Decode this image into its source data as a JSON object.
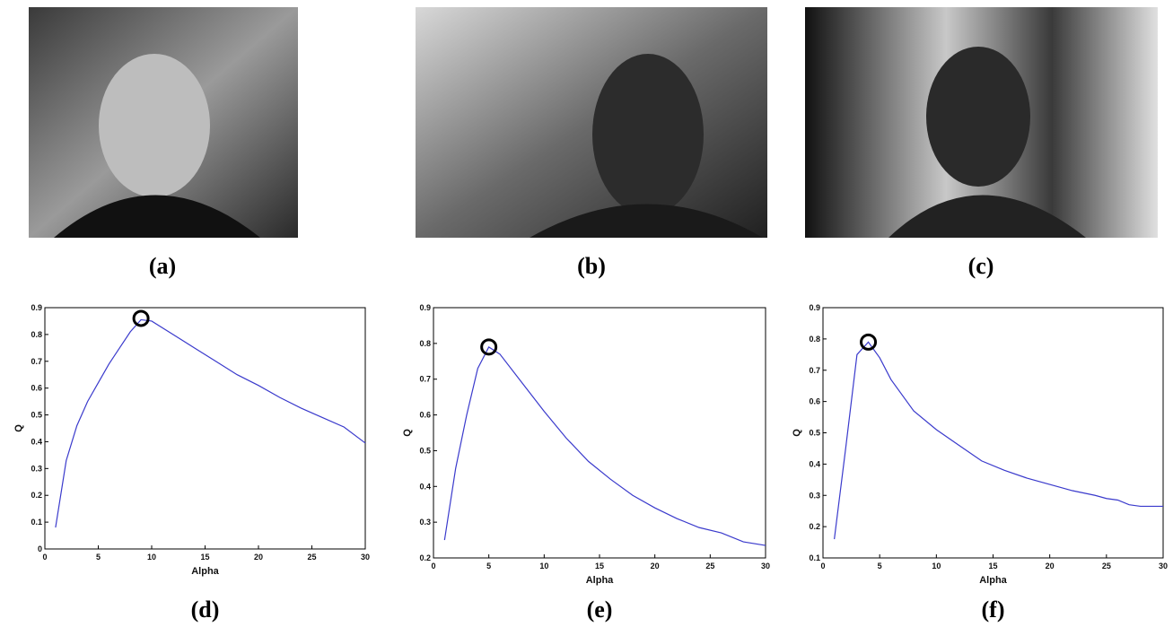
{
  "images": [
    {
      "caption": "(a)"
    },
    {
      "caption": "(b)"
    },
    {
      "caption": "(c)"
    }
  ],
  "chart_data": [
    {
      "type": "line",
      "caption": "(d)",
      "x_label": "Alpha",
      "y_label": "Q",
      "x": [
        1,
        2,
        3,
        4,
        5,
        6,
        7,
        8,
        9,
        10,
        12,
        14,
        16,
        18,
        20,
        22,
        24,
        26,
        28,
        30
      ],
      "series": [
        {
          "color": "#3a3acc",
          "values": [
            0.08,
            0.33,
            0.46,
            0.55,
            0.62,
            0.69,
            0.75,
            0.81,
            0.855,
            0.85,
            0.8,
            0.75,
            0.7,
            0.65,
            0.61,
            0.565,
            0.525,
            0.49,
            0.455,
            0.395
          ]
        }
      ],
      "marker": {
        "x": 9,
        "y": 0.86
      },
      "xlim": [
        0,
        30
      ],
      "xticks": [
        0,
        5,
        10,
        15,
        20,
        25,
        30
      ],
      "ylim": [
        0,
        0.9
      ],
      "yticks": [
        0,
        0.1,
        0.2,
        0.3,
        0.4,
        0.5,
        0.6,
        0.7,
        0.8,
        0.9
      ]
    },
    {
      "type": "line",
      "caption": "(e)",
      "x_label": "Alpha",
      "y_label": "Q",
      "x": [
        1,
        2,
        3,
        4,
        5,
        6,
        8,
        10,
        12,
        14,
        16,
        18,
        20,
        22,
        24,
        26,
        28,
        30
      ],
      "series": [
        {
          "color": "#3a3acc",
          "values": [
            0.25,
            0.45,
            0.6,
            0.73,
            0.79,
            0.77,
            0.69,
            0.61,
            0.535,
            0.47,
            0.42,
            0.375,
            0.34,
            0.31,
            0.285,
            0.27,
            0.245,
            0.235
          ]
        }
      ],
      "marker": {
        "x": 5,
        "y": 0.79
      },
      "xlim": [
        0,
        30
      ],
      "xticks": [
        0,
        5,
        10,
        15,
        20,
        25,
        30
      ],
      "ylim": [
        0.2,
        0.9
      ],
      "yticks": [
        0.2,
        0.3,
        0.4,
        0.5,
        0.6,
        0.7,
        0.8,
        0.9
      ]
    },
    {
      "type": "line",
      "caption": "(f)",
      "x_label": "Alpha",
      "y_label": "Q",
      "x": [
        1,
        2,
        3,
        4,
        5,
        6,
        8,
        10,
        12,
        14,
        16,
        18,
        20,
        22,
        24,
        25,
        26,
        27,
        28,
        30
      ],
      "series": [
        {
          "color": "#3a3acc",
          "values": [
            0.16,
            0.45,
            0.75,
            0.79,
            0.74,
            0.67,
            0.57,
            0.51,
            0.46,
            0.41,
            0.38,
            0.355,
            0.335,
            0.315,
            0.3,
            0.29,
            0.285,
            0.27,
            0.265,
            0.265
          ]
        }
      ],
      "marker": {
        "x": 4,
        "y": 0.79
      },
      "xlim": [
        0,
        30
      ],
      "xticks": [
        0,
        5,
        10,
        15,
        20,
        25,
        30
      ],
      "ylim": [
        0.1,
        0.9
      ],
      "yticks": [
        0.1,
        0.2,
        0.3,
        0.4,
        0.5,
        0.6,
        0.7,
        0.8,
        0.9
      ]
    }
  ]
}
